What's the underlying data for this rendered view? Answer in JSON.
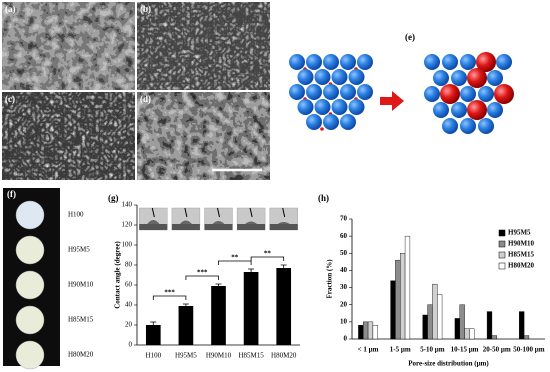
{
  "panel_labels": [
    "(a)",
    "(b)",
    "(c)",
    "(d)",
    "(e)",
    "(f)",
    "(g)",
    "(h)"
  ],
  "sample_labels": [
    "H100",
    "H95M5",
    "H90M10",
    "H85M15",
    "H80M20"
  ],
  "chart_data": [
    {
      "type": "bar",
      "ylabel": "Contact angle (degree)",
      "categories": [
        "H100",
        "H95M5",
        "H90M10",
        "H85M15",
        "H80M20"
      ],
      "values": [
        20,
        39,
        59,
        73,
        77
      ],
      "errors": [
        3,
        2,
        2,
        3,
        3
      ],
      "color": "#000000",
      "ylim": [
        0,
        140
      ],
      "yticks": [
        0,
        20,
        40,
        60,
        80,
        100,
        120,
        140
      ],
      "annotations": [
        {
          "text": "***",
          "between": [
            0,
            1
          ]
        },
        {
          "text": "***",
          "between": [
            1,
            2
          ]
        },
        {
          "text": "**",
          "between": [
            2,
            3
          ]
        },
        {
          "text": "**",
          "between": [
            3,
            4
          ]
        }
      ]
    },
    {
      "type": "bar",
      "xlabel": "Pore-size distribution (μm)",
      "ylabel": "Fraction (%)",
      "categories": [
        "< 1 μm",
        "1-5 μm",
        "5-10 μm",
        "10-15 μm",
        "20-50 μm",
        "50-100 μm"
      ],
      "series": [
        {
          "name": "H95M5",
          "color": "#000000",
          "values": [
            8,
            34,
            14,
            12,
            16,
            16
          ]
        },
        {
          "name": "H90M10",
          "color": "#8c8c8c",
          "values": [
            10,
            46,
            20,
            20,
            2,
            2
          ]
        },
        {
          "name": "H85M15",
          "color": "#d0d0d0",
          "values": [
            10,
            50,
            32,
            6,
            0,
            0
          ]
        },
        {
          "name": "H80M20",
          "color": "#ffffff",
          "values": [
            8,
            60,
            26,
            6,
            0,
            0
          ]
        }
      ],
      "ylim": [
        0,
        70
      ],
      "yticks": [
        0,
        10,
        20,
        30,
        40,
        50,
        60,
        70
      ],
      "legend": "upper right"
    }
  ]
}
